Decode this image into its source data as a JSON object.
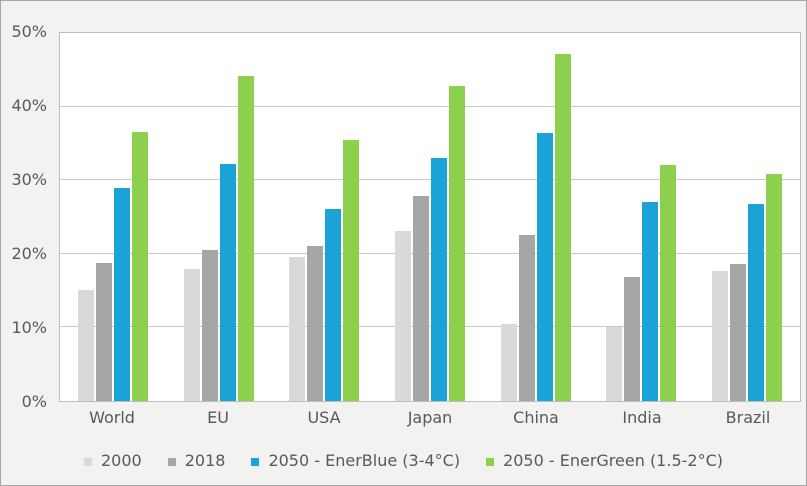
{
  "chart_data": {
    "type": "bar",
    "title": "",
    "xlabel": "",
    "ylabel": "",
    "categories": [
      "World",
      "EU",
      "USA",
      "Japan",
      "China",
      "India",
      "Brazil"
    ],
    "series": [
      {
        "name": "2000",
        "color": "#d9d9d9",
        "values": [
          15.1,
          18.0,
          19.5,
          23.1,
          10.5,
          10.0,
          17.6
        ]
      },
      {
        "name": "2018",
        "color": "#a6a6a6",
        "values": [
          18.7,
          20.5,
          21.0,
          27.8,
          22.6,
          16.9,
          18.6
        ]
      },
      {
        "name": "2050 - EnerBlue (3-4°C)",
        "color": "#1ba3d8",
        "values": [
          28.9,
          32.2,
          26.1,
          33.0,
          36.4,
          27.0,
          26.8
        ]
      },
      {
        "name": "2050 - EnerGreen (1.5-2°C)",
        "color": "#8dd04e",
        "values": [
          36.6,
          44.2,
          35.4,
          42.8,
          47.1,
          32.0,
          30.8
        ]
      }
    ],
    "ylim": [
      0,
      50
    ],
    "ytick_step": 10,
    "yticks": [
      "0%",
      "10%",
      "20%",
      "30%",
      "40%",
      "50%"
    ],
    "grid": true,
    "legend_position": "bottom-center"
  },
  "colors": {
    "canvas_background": "#f2f2f0",
    "plot_background": "#ffffff",
    "gridline": "#c9c9c9",
    "plot_border": "#bdbdbd",
    "outer_border": "#a6a6a6",
    "text": "#595959"
  }
}
